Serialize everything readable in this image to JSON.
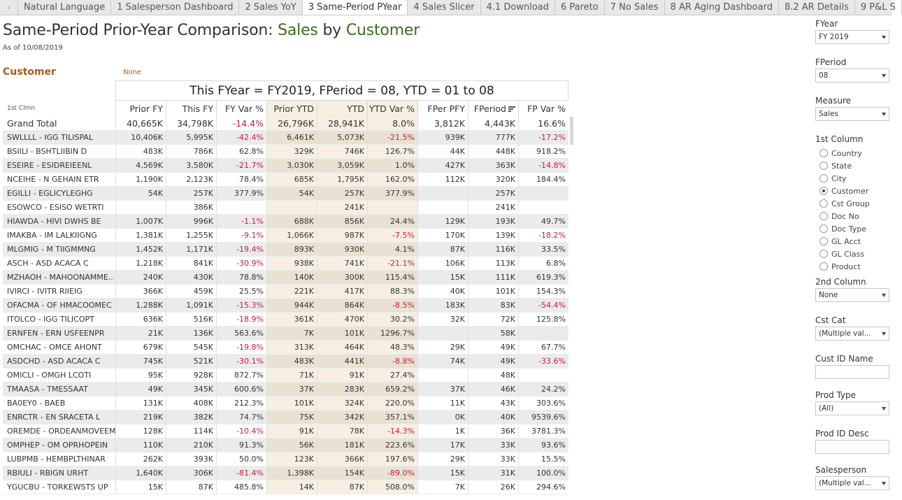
{
  "tabs": [
    {
      "label": "Natural Language",
      "active": false
    },
    {
      "label": "1 Salesperson Dashboard",
      "active": false
    },
    {
      "label": "2 Sales YoY",
      "active": false
    },
    {
      "label": "3 Same-Period PYear",
      "active": true
    },
    {
      "label": "4 Sales Slicer",
      "active": false
    },
    {
      "label": "4.1 Download",
      "active": false
    },
    {
      "label": "6 Pareto",
      "active": false
    },
    {
      "label": "7 No Sales",
      "active": false
    },
    {
      "label": "8 AR Aging Dashboard",
      "active": false
    },
    {
      "label": "8.2 AR Details",
      "active": false
    },
    {
      "label": "9 P&L S",
      "active": false
    }
  ],
  "nav": {
    "left_icon": "chevron-left-icon",
    "left_glyph": "‹"
  },
  "header": {
    "title_prefix": "Same-Period Prior-Year Comparison: ",
    "title_measure": "Sales",
    "title_by": " by ",
    "title_dimension": "Customer",
    "as_of": "As of 10/08/2019",
    "dimension_label": "Customer",
    "second_dimension": "None"
  },
  "colors": {
    "accent_green": "#3e6b1f",
    "label_brown": "#a0601e",
    "negative_red": "#c0213c",
    "highlight_tan": "#f6efe2"
  },
  "table": {
    "super_header": "This FYear = FY2019,  FPeriod = 08,  YTD = 01 to 08",
    "dim_header": "1st Clmn",
    "columns": [
      "Prior FY",
      "This FY",
      "FY Var %",
      "Prior YTD",
      "YTD",
      "YTD Var %",
      "FPer PFY",
      "FPeriod",
      "FP Var %"
    ],
    "sort_icon": "sort-descending-icon",
    "rows": [
      {
        "name": "Grand Total",
        "values": [
          "40,665K",
          "34,798K",
          "-14.4%",
          "26,796K",
          "28,941K",
          "8.0%",
          "3,812K",
          "4,443K",
          "16.6%"
        ],
        "total": true
      },
      {
        "name": "SWLLLL - IGG TILISPAL",
        "values": [
          "10,406K",
          "5,995K",
          "-42.4%",
          "6,461K",
          "5,073K",
          "-21.5%",
          "939K",
          "777K",
          "-17.2%"
        ]
      },
      {
        "name": "BSIILI - BSHTLIIBIN D",
        "values": [
          "483K",
          "786K",
          "62.8%",
          "329K",
          "746K",
          "126.7%",
          "44K",
          "448K",
          "918.2%"
        ]
      },
      {
        "name": "ESEIRE - ESIDREIEENL",
        "values": [
          "4,569K",
          "3,580K",
          "-21.7%",
          "3,030K",
          "3,059K",
          "1.0%",
          "427K",
          "363K",
          "-14.8%"
        ]
      },
      {
        "name": "NCEIHE - N GEHAIN ETR",
        "values": [
          "1,190K",
          "2,123K",
          "78.4%",
          "685K",
          "1,795K",
          "162.0%",
          "112K",
          "320K",
          "184.4%"
        ]
      },
      {
        "name": "EGILLI - EGLICYLEGHG",
        "values": [
          "54K",
          "257K",
          "377.9%",
          "54K",
          "257K",
          "377.9%",
          "",
          "257K",
          ""
        ]
      },
      {
        "name": "ESOWCO - ESISO WETRTI",
        "values": [
          "",
          "386K",
          "",
          "",
          "241K",
          "",
          "",
          "241K",
          ""
        ]
      },
      {
        "name": "HIAWDA - HIVI DWHS BE",
        "values": [
          "1,007K",
          "996K",
          "-1.1%",
          "688K",
          "856K",
          "24.4%",
          "129K",
          "193K",
          "49.7%"
        ]
      },
      {
        "name": "IMAKBA - IM LALKIIGNG",
        "values": [
          "1,381K",
          "1,255K",
          "-9.1%",
          "1,066K",
          "987K",
          "-7.5%",
          "170K",
          "139K",
          "-18.2%"
        ]
      },
      {
        "name": "MLGMIG - M TIIGMMNG",
        "values": [
          "1,452K",
          "1,171K",
          "-19.4%",
          "893K",
          "930K",
          "4.1%",
          "87K",
          "116K",
          "33.5%"
        ]
      },
      {
        "name": "ASCH - ASD ACACA C",
        "values": [
          "1,218K",
          "841K",
          "-30.9%",
          "938K",
          "741K",
          "-21.1%",
          "106K",
          "113K",
          "6.8%"
        ]
      },
      {
        "name": "MZHAOH - MAHOONAMME..",
        "values": [
          "240K",
          "430K",
          "78.8%",
          "140K",
          "300K",
          "115.4%",
          "15K",
          "111K",
          "619.3%"
        ]
      },
      {
        "name": "IVIRCI - IVITR RIIEIG",
        "values": [
          "366K",
          "459K",
          "25.5%",
          "221K",
          "417K",
          "88.3%",
          "40K",
          "101K",
          "154.3%"
        ]
      },
      {
        "name": "OFACMA - OF HMACOOMEC",
        "values": [
          "1,288K",
          "1,091K",
          "-15.3%",
          "944K",
          "864K",
          "-8.5%",
          "183K",
          "83K",
          "-54.4%"
        ]
      },
      {
        "name": "ITOLCO - IGG TILICOPT",
        "values": [
          "636K",
          "516K",
          "-18.9%",
          "361K",
          "470K",
          "30.2%",
          "32K",
          "72K",
          "125.8%"
        ]
      },
      {
        "name": "ERNFEN - ERN USFEENPR",
        "values": [
          "21K",
          "136K",
          "563.6%",
          "7K",
          "101K",
          "1296.7%",
          "",
          "58K",
          ""
        ]
      },
      {
        "name": "OMCHAC - OMCE AHONT",
        "values": [
          "679K",
          "545K",
          "-19.8%",
          "313K",
          "464K",
          "48.3%",
          "29K",
          "49K",
          "67.7%"
        ]
      },
      {
        "name": "ASDCHD - ASD ACACA C",
        "values": [
          "745K",
          "521K",
          "-30.1%",
          "483K",
          "441K",
          "-8.8%",
          "74K",
          "49K",
          "-33.6%"
        ]
      },
      {
        "name": "OMICLI - OMGH LCOTI",
        "values": [
          "95K",
          "928K",
          "872.7%",
          "71K",
          "91K",
          "27.4%",
          "",
          "48K",
          ""
        ]
      },
      {
        "name": "TMAASA - TMESSAAT",
        "values": [
          "49K",
          "345K",
          "600.6%",
          "37K",
          "283K",
          "659.2%",
          "37K",
          "46K",
          "24.2%"
        ]
      },
      {
        "name": "BA0EY0 - BAEB",
        "values": [
          "131K",
          "408K",
          "212.3%",
          "101K",
          "324K",
          "220.0%",
          "11K",
          "43K",
          "303.6%"
        ]
      },
      {
        "name": "ENRCTR - EN SRACETA L",
        "values": [
          "219K",
          "382K",
          "74.7%",
          "75K",
          "342K",
          "357.1%",
          "0K",
          "40K",
          "9539.6%"
        ]
      },
      {
        "name": "OREMDE - ORDEANMOVEEM",
        "values": [
          "128K",
          "114K",
          "-10.4%",
          "91K",
          "78K",
          "-14.3%",
          "1K",
          "36K",
          "3781.3%"
        ]
      },
      {
        "name": "OMPHEP - OM OPRHOPEIN",
        "values": [
          "110K",
          "210K",
          "91.3%",
          "56K",
          "181K",
          "223.6%",
          "17K",
          "33K",
          "93.6%"
        ]
      },
      {
        "name": "LUBPMB - HEMBPLTHINAR",
        "values": [
          "262K",
          "393K",
          "50.0%",
          "123K",
          "366K",
          "197.6%",
          "29K",
          "33K",
          "15.5%"
        ]
      },
      {
        "name": "RBIULI - RBIGN URHT",
        "values": [
          "1,640K",
          "306K",
          "-81.4%",
          "1,398K",
          "154K",
          "-89.0%",
          "15K",
          "31K",
          "100.0%"
        ]
      },
      {
        "name": "YGUCBU - TORKEWSTS UP",
        "values": [
          "15K",
          "87K",
          "485.8%",
          "14K",
          "87K",
          "508.0%",
          "7K",
          "26K",
          "294.6%"
        ]
      }
    ]
  },
  "filters": {
    "fyear": {
      "label": "FYear",
      "value": "FY 2019"
    },
    "fperiod": {
      "label": "FPeriod",
      "value": "08"
    },
    "measure": {
      "label": "Measure",
      "value": "Sales"
    },
    "first_column": {
      "label": "1st Column",
      "options": [
        "Country",
        "State",
        "City",
        "Customer",
        "Cst Group",
        "Doc No",
        "Doc Type",
        "GL Acct",
        "GL Class",
        "Product"
      ],
      "selected": "Customer"
    },
    "second_column": {
      "label": "2nd Column",
      "value": "None"
    },
    "cst_cat": {
      "label": "Cst Cat",
      "value": "(Multiple val..."
    },
    "cust_id_name": {
      "label": "Cust ID Name",
      "value": ""
    },
    "prod_type": {
      "label": "Prod Type",
      "value": "(All)"
    },
    "prod_id_desc": {
      "label": "Prod ID Desc",
      "value": ""
    },
    "salesperson": {
      "label": "Salesperson",
      "value": "(Multiple val..."
    }
  }
}
